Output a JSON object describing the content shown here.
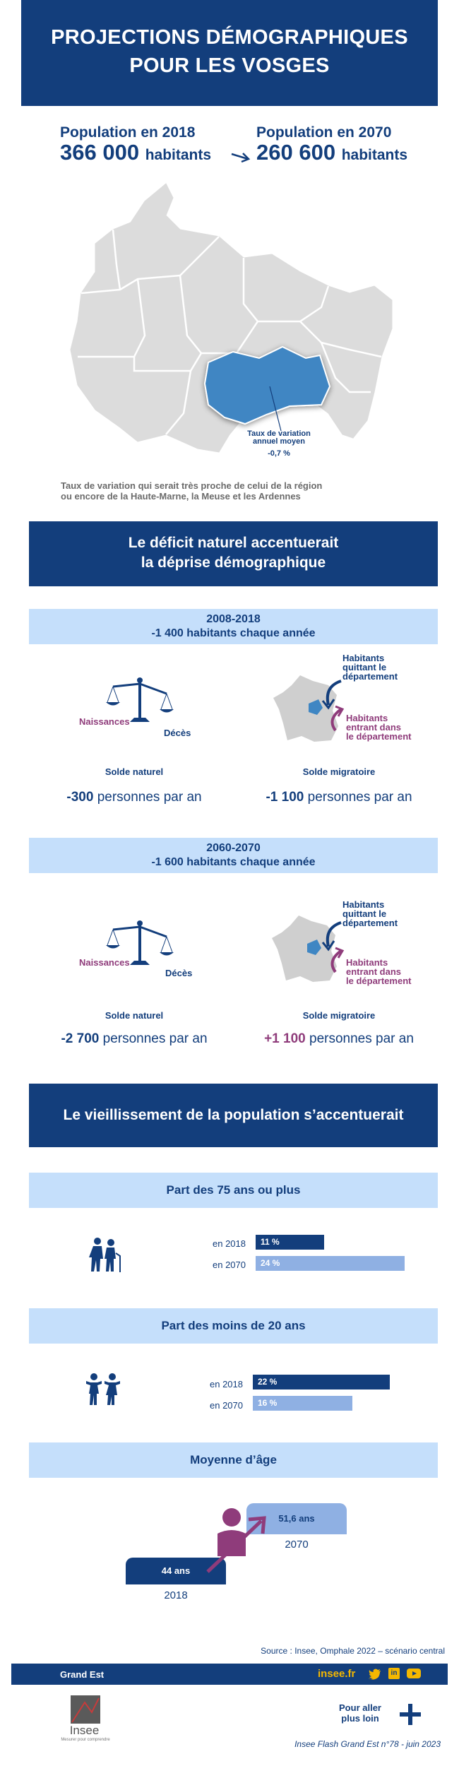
{
  "header": {
    "title_line1": "PROJECTIONS DÉMOGRAPHIQUES",
    "title_line2": "POUR LES VOSGES"
  },
  "population": {
    "label_2018": "Population en 2018",
    "value_2018": "366 000",
    "unit_2018": "habitants",
    "label_2070": "Population en 2070",
    "value_2070": "260 600",
    "unit_2070": "habitants"
  },
  "map": {
    "annotation_line1": "Taux de variation",
    "annotation_line2": "annuel moyen",
    "rate": "-0,7 %",
    "caption_line1": "Taux de variation qui serait très proche de celui de la région",
    "caption_line2": "ou encore de la Haute-Marne, la Meuse et les Ardennes",
    "colors": {
      "region": "#dcdcdc",
      "borders": "#ffffff",
      "vosges": "#3f86c3"
    }
  },
  "section1": {
    "title_line1": "Le déficit naturel accentuerait",
    "title_line2": "la déprise démographique"
  },
  "period1": {
    "title_line1": "2008-2018",
    "title_line2": "-1 400 habitants chaque année",
    "births": "Naissances",
    "deaths": "Décès",
    "leaving_l1": "Habitants",
    "leaving_l2": "quittant le",
    "leaving_l3": "département",
    "entering_l1": "Habitants",
    "entering_l2": "entrant dans",
    "entering_l3": "le département",
    "natural_label": "Solde naturel",
    "migratory_label": "Solde migratoire",
    "natural_value": "-300",
    "migratory_value": "-1 100",
    "unit": "personnes par an"
  },
  "period2": {
    "title_line1": "2060-2070",
    "title_line2": "-1 600 habitants chaque année",
    "births": "Naissances",
    "deaths": "Décès",
    "leaving_l1": "Habitants",
    "leaving_l2": "quittant le",
    "leaving_l3": "département",
    "entering_l1": "Habitants",
    "entering_l2": "entrant dans",
    "entering_l3": "le département",
    "natural_label": "Solde naturel",
    "migratory_label": "Solde migratoire",
    "natural_value": "-2 700",
    "migratory_value": "+1 100",
    "unit": "personnes par an"
  },
  "section2": {
    "title": "Le vieillissement de la population s’accentuerait"
  },
  "elderly": {
    "title": "Part des 75 ans ou plus",
    "year_2018": "en 2018",
    "value_2018": "11 %",
    "share_2018": 11,
    "year_2070": "en 2070",
    "value_2070": "24 %",
    "share_2070": 24
  },
  "young": {
    "title": "Part des moins de 20 ans",
    "year_2018": "en 2018",
    "value_2018": "22 %",
    "share_2018": 22,
    "year_2070": "en 2070",
    "value_2070": "16 %",
    "share_2070": 16
  },
  "avg_age": {
    "title": "Moyenne d’âge",
    "value_2018": "44 ans",
    "year_2018": "2018",
    "value_2070": "51,6 ans",
    "year_2070": "2070"
  },
  "source": "Source :  Insee, Omphale 2022 – scénario central",
  "footer": {
    "region": "Grand Est",
    "site": "insee.fr",
    "more_line1": "Pour aller",
    "more_line2": "plus loin",
    "publication": "Insee Flash Grand Est n°78 - juin 2023",
    "logo_text": "Insee",
    "logo_tagline": "Mesurer pour comprendre"
  },
  "colors": {
    "navy": "#133e7c",
    "light_blue": "#c5dffb",
    "bar_light": "#8fb0e3",
    "purple": "#8f3c7b",
    "gold": "#f5b800"
  }
}
